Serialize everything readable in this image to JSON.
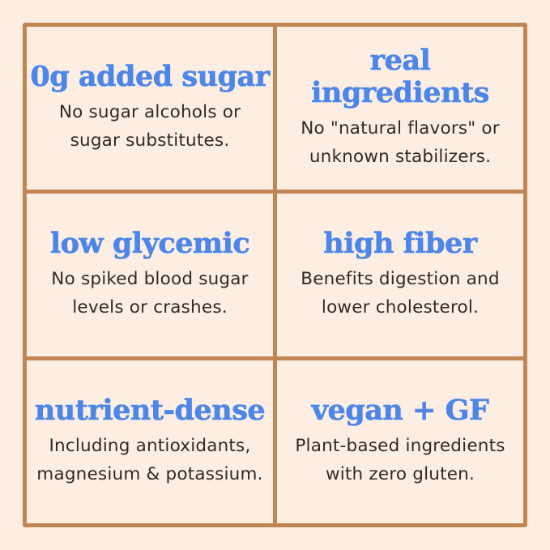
{
  "palette": {
    "bg": "#fdeee3",
    "border": "#c08552",
    "heading": "#4c86e8",
    "body_text": "#302a26"
  },
  "grid": {
    "cells": [
      {
        "id": "zero-added-sugar",
        "heading": "0g added sugar",
        "line1": "No sugar alcohols or",
        "line2": "sugar substitutes."
      },
      {
        "id": "real-ingredients",
        "heading": "real ingredients",
        "line1": "No \"natural flavors\" or",
        "line2": "unknown stabilizers."
      },
      {
        "id": "low-glycemic",
        "heading": "low glycemic",
        "line1": "No spiked blood sugar",
        "line2": "levels or crashes."
      },
      {
        "id": "high-fiber",
        "heading": "high fiber",
        "line1": "Benefits digestion and",
        "line2": "lower cholesterol."
      },
      {
        "id": "nutrient-dense",
        "heading": "nutrient-dense",
        "line1": "Including antioxidants,",
        "line2": "magnesium & potassium."
      },
      {
        "id": "vegan-gf",
        "heading": "vegan + GF",
        "line1": "Plant-based ingredients",
        "line2": "with zero gluten."
      }
    ]
  }
}
